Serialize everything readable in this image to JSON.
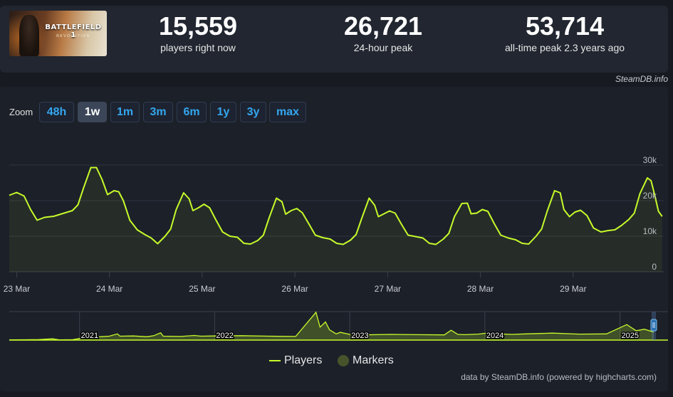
{
  "header": {
    "thumbnail_logo": "BATTLEFIELD 1",
    "thumbnail_subtitle": "REVOLUTION",
    "stats": [
      {
        "value": "15,559",
        "label": "players right now"
      },
      {
        "value": "26,721",
        "label": "24-hour peak"
      },
      {
        "value": "53,714",
        "label": "all-time peak 2.3 years ago"
      }
    ],
    "watermark": "SteamDB.info"
  },
  "zoom": {
    "label": "Zoom",
    "options": [
      "48h",
      "1w",
      "1m",
      "3m",
      "6m",
      "1y",
      "3y",
      "max"
    ],
    "active": "1w"
  },
  "chart_data": {
    "type": "line",
    "title": "",
    "xlabel": "",
    "ylabel": "",
    "ylim": [
      0,
      30000
    ],
    "y_ticks": [
      0,
      10000,
      20000,
      30000
    ],
    "y_tick_labels": [
      "0",
      "10k",
      "20k",
      "30k"
    ],
    "x_ticks": [
      "23 Mar",
      "24 Mar",
      "25 Mar",
      "26 Mar",
      "27 Mar",
      "28 Mar",
      "29 Mar"
    ],
    "x_range_days": [
      -0.08,
      6.9
    ],
    "grid": true,
    "series": [
      {
        "name": "Players",
        "color": "#c6fa2a",
        "points": [
          [
            -0.08,
            21500
          ],
          [
            0.0,
            22300
          ],
          [
            0.08,
            21300
          ],
          [
            0.15,
            17500
          ],
          [
            0.22,
            14500
          ],
          [
            0.3,
            15300
          ],
          [
            0.4,
            15600
          ],
          [
            0.5,
            16400
          ],
          [
            0.6,
            17200
          ],
          [
            0.66,
            18800
          ],
          [
            0.72,
            23500
          ],
          [
            0.8,
            29300
          ],
          [
            0.86,
            29300
          ],
          [
            0.92,
            26000
          ],
          [
            0.98,
            21700
          ],
          [
            1.05,
            22800
          ],
          [
            1.1,
            22500
          ],
          [
            1.15,
            20000
          ],
          [
            1.22,
            14500
          ],
          [
            1.3,
            11800
          ],
          [
            1.38,
            10500
          ],
          [
            1.45,
            9500
          ],
          [
            1.52,
            7900
          ],
          [
            1.6,
            10000
          ],
          [
            1.66,
            12000
          ],
          [
            1.72,
            17500
          ],
          [
            1.8,
            22200
          ],
          [
            1.86,
            20500
          ],
          [
            1.9,
            17200
          ],
          [
            1.96,
            18000
          ],
          [
            2.02,
            19000
          ],
          [
            2.08,
            18000
          ],
          [
            2.15,
            14500
          ],
          [
            2.22,
            11200
          ],
          [
            2.3,
            10000
          ],
          [
            2.38,
            9700
          ],
          [
            2.45,
            8000
          ],
          [
            2.52,
            7800
          ],
          [
            2.6,
            8800
          ],
          [
            2.66,
            10300
          ],
          [
            2.72,
            15000
          ],
          [
            2.8,
            20700
          ],
          [
            2.86,
            19700
          ],
          [
            2.9,
            16200
          ],
          [
            2.96,
            17200
          ],
          [
            3.02,
            17800
          ],
          [
            3.08,
            16600
          ],
          [
            3.15,
            13500
          ],
          [
            3.22,
            10300
          ],
          [
            3.3,
            9600
          ],
          [
            3.38,
            9200
          ],
          [
            3.45,
            8000
          ],
          [
            3.52,
            7700
          ],
          [
            3.6,
            8900
          ],
          [
            3.66,
            10500
          ],
          [
            3.72,
            15000
          ],
          [
            3.8,
            20700
          ],
          [
            3.86,
            18700
          ],
          [
            3.9,
            15500
          ],
          [
            3.96,
            16300
          ],
          [
            4.02,
            17100
          ],
          [
            4.08,
            16500
          ],
          [
            4.15,
            13300
          ],
          [
            4.22,
            10300
          ],
          [
            4.3,
            9900
          ],
          [
            4.38,
            9500
          ],
          [
            4.45,
            8000
          ],
          [
            4.52,
            7700
          ],
          [
            4.6,
            9200
          ],
          [
            4.66,
            10800
          ],
          [
            4.72,
            15500
          ],
          [
            4.8,
            19200
          ],
          [
            4.86,
            19300
          ],
          [
            4.9,
            16300
          ],
          [
            4.96,
            16500
          ],
          [
            5.02,
            17500
          ],
          [
            5.08,
            17000
          ],
          [
            5.15,
            13500
          ],
          [
            5.22,
            10300
          ],
          [
            5.3,
            9500
          ],
          [
            5.38,
            9000
          ],
          [
            5.45,
            8000
          ],
          [
            5.52,
            7800
          ],
          [
            5.6,
            10000
          ],
          [
            5.66,
            12000
          ],
          [
            5.72,
            17000
          ],
          [
            5.8,
            22800
          ],
          [
            5.86,
            22200
          ],
          [
            5.9,
            17500
          ],
          [
            5.96,
            15500
          ],
          [
            6.02,
            16800
          ],
          [
            6.08,
            17300
          ],
          [
            6.15,
            15800
          ],
          [
            6.22,
            12300
          ],
          [
            6.3,
            11200
          ],
          [
            6.38,
            11600
          ],
          [
            6.45,
            11800
          ],
          [
            6.52,
            13000
          ],
          [
            6.6,
            14700
          ],
          [
            6.66,
            16500
          ],
          [
            6.72,
            22000
          ],
          [
            6.8,
            26400
          ],
          [
            6.84,
            25600
          ],
          [
            6.88,
            21500
          ],
          [
            6.92,
            17000
          ],
          [
            6.96,
            15559
          ]
        ]
      }
    ],
    "navigator": {
      "year_labels": [
        "2021",
        "2022",
        "2023",
        "2024",
        "2025"
      ],
      "x_range_years": [
        2020.48,
        2025.25
      ],
      "year_positions": [
        2021.0,
        2022.0,
        2023.0,
        2024.0,
        2025.0
      ],
      "ylim": [
        0,
        55000
      ],
      "points": [
        [
          2020.48,
          600
        ],
        [
          2020.6,
          700
        ],
        [
          2020.7,
          900
        ],
        [
          2020.8,
          2500
        ],
        [
          2020.85,
          600
        ],
        [
          2020.95,
          800
        ],
        [
          2021.0,
          3000
        ],
        [
          2021.08,
          5500
        ],
        [
          2021.15,
          6500
        ],
        [
          2021.22,
          7500
        ],
        [
          2021.28,
          12000
        ],
        [
          2021.3,
          7500
        ],
        [
          2021.4,
          8000
        ],
        [
          2021.5,
          6500
        ],
        [
          2021.55,
          8500
        ],
        [
          2021.6,
          14000
        ],
        [
          2021.62,
          7500
        ],
        [
          2021.75,
          7000
        ],
        [
          2021.85,
          9000
        ],
        [
          2021.9,
          7500
        ],
        [
          2022.0,
          8000
        ],
        [
          2022.2,
          8500
        ],
        [
          2022.4,
          7500
        ],
        [
          2022.6,
          7000
        ],
        [
          2022.75,
          53714
        ],
        [
          2022.78,
          25000
        ],
        [
          2022.82,
          35000
        ],
        [
          2022.85,
          20000
        ],
        [
          2022.9,
          12000
        ],
        [
          2022.93,
          15000
        ],
        [
          2023.0,
          11000
        ],
        [
          2023.1,
          10000
        ],
        [
          2023.3,
          11000
        ],
        [
          2023.5,
          10500
        ],
        [
          2023.7,
          10000
        ],
        [
          2023.75,
          19000
        ],
        [
          2023.8,
          11000
        ],
        [
          2023.85,
          10500
        ],
        [
          2023.95,
          11500
        ],
        [
          2024.0,
          13000
        ],
        [
          2024.2,
          11000
        ],
        [
          2024.3,
          12000
        ],
        [
          2024.5,
          13500
        ],
        [
          2024.7,
          11500
        ],
        [
          2024.9,
          12000
        ],
        [
          2025.05,
          30000
        ],
        [
          2025.12,
          18000
        ],
        [
          2025.18,
          21000
        ],
        [
          2025.25,
          15559
        ]
      ]
    }
  },
  "legend": {
    "players_label": "Players",
    "markers_label": "Markers"
  },
  "footer": {
    "credits": "data by SteamDB.info (powered by highcharts.com)"
  }
}
